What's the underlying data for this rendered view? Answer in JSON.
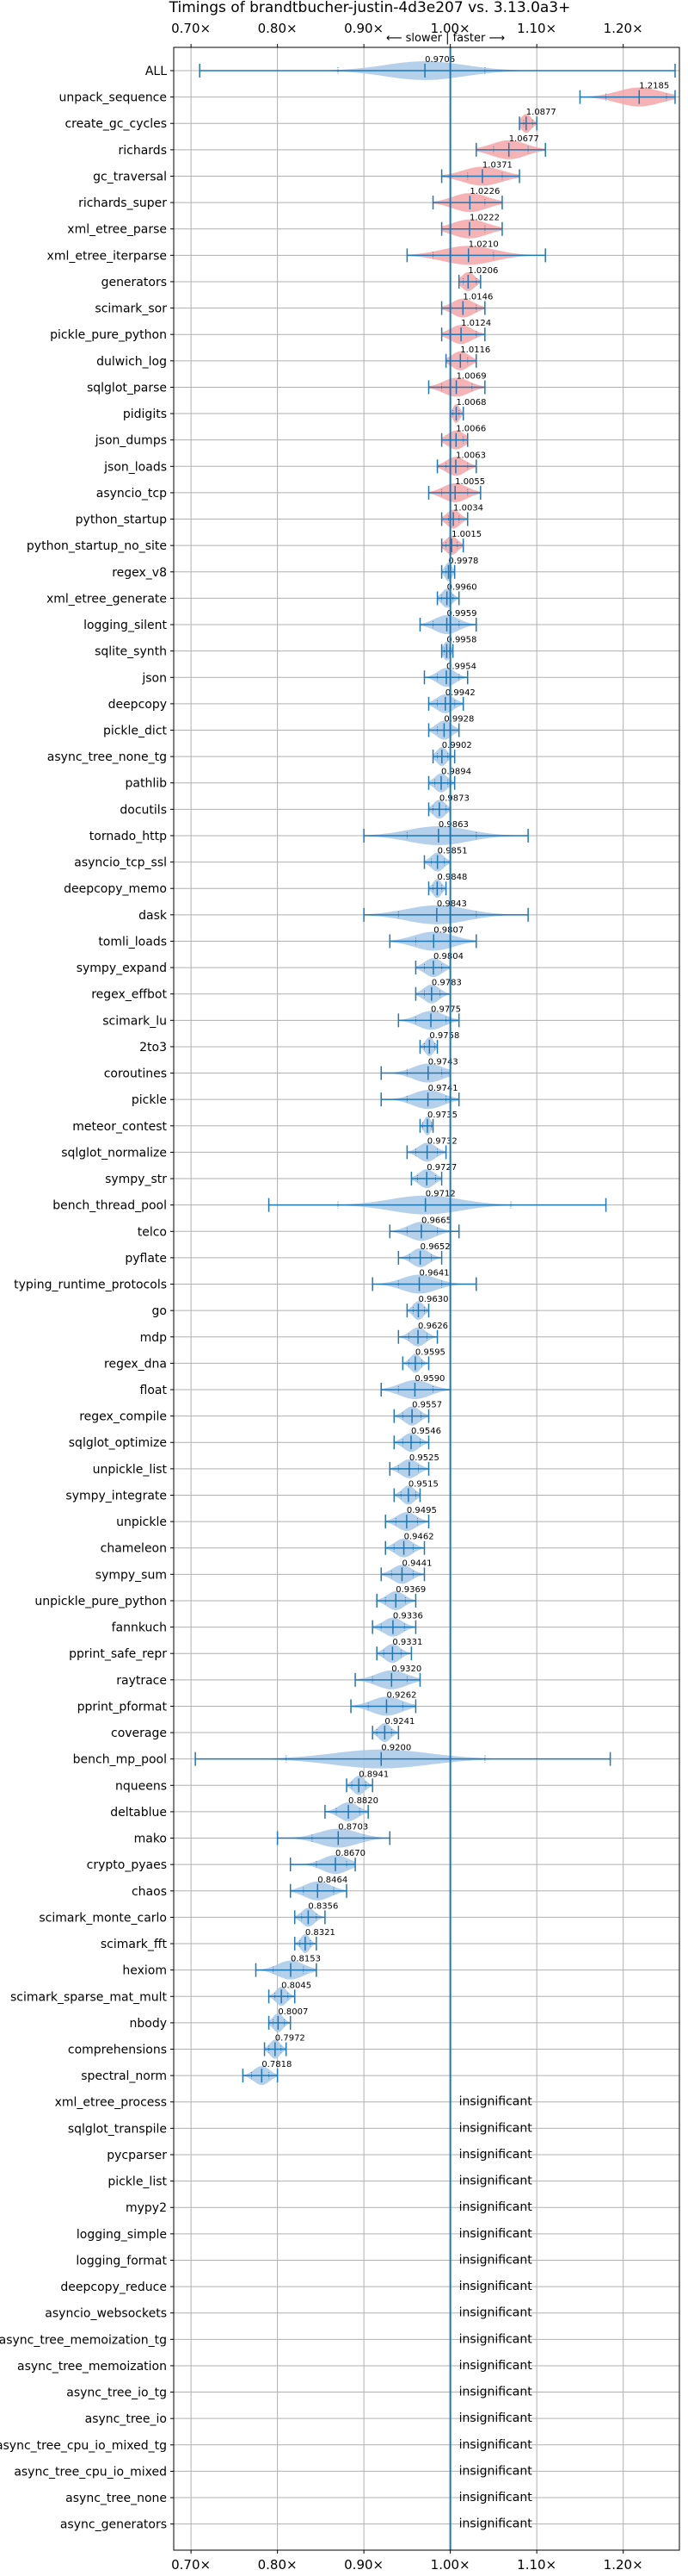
{
  "chart_data": {
    "type": "violin",
    "title": "Timings of brandtbucher-justin-4d3e207 vs. 3.13.0a3+",
    "subtitle": "⟵ slower | faster ⟶",
    "xlim": [
      0.68,
      1.265
    ],
    "xticks": [
      0.7,
      0.8,
      0.9,
      1.0,
      1.1,
      1.2
    ],
    "xtick_labels": [
      "0.70×",
      "0.80×",
      "0.90×",
      "1.00×",
      "1.10×",
      "1.20×"
    ],
    "reference_x": 1.0,
    "grid": true,
    "colors": {
      "faster": "#a8c8e8",
      "slower": "#f4a6a8",
      "line": "#1f77b4"
    },
    "insignificant_label": "insignificant",
    "benchmarks": [
      {
        "name": "ALL",
        "mean": 0.9706,
        "label": "0.9706",
        "min": 0.71,
        "max": 1.26,
        "q1": 0.87,
        "q3": 1.04,
        "width": 0.09
      },
      {
        "name": "unpack_sequence",
        "mean": 1.2185,
        "label": "1.2185",
        "min": 1.15,
        "max": 1.26,
        "q1": 1.18,
        "q3": 1.25,
        "width": 0.05
      },
      {
        "name": "create_gc_cycles",
        "mean": 1.0877,
        "label": "1.0877",
        "min": 1.08,
        "max": 1.1,
        "q1": 1.085,
        "q3": 1.095,
        "width": 0.012
      },
      {
        "name": "richards",
        "mean": 1.0677,
        "label": "1.0677",
        "min": 1.03,
        "max": 1.11,
        "q1": 1.05,
        "q3": 1.09,
        "width": 0.04
      },
      {
        "name": "gc_traversal",
        "mean": 1.0371,
        "label": "1.0371",
        "min": 0.99,
        "max": 1.08,
        "q1": 1.02,
        "q3": 1.06,
        "width": 0.045
      },
      {
        "name": "richards_super",
        "mean": 1.0226,
        "label": "1.0226",
        "min": 0.98,
        "max": 1.06,
        "q1": 1.0,
        "q3": 1.04,
        "width": 0.04
      },
      {
        "name": "xml_etree_parse",
        "mean": 1.0222,
        "label": "1.0222",
        "min": 0.99,
        "max": 1.06,
        "q1": 1.0,
        "q3": 1.04,
        "width": 0.04
      },
      {
        "name": "xml_etree_iterparse",
        "mean": 1.021,
        "label": "1.0210",
        "min": 0.95,
        "max": 1.11,
        "q1": 0.98,
        "q3": 1.05,
        "width": 0.06
      },
      {
        "name": "generators",
        "mean": 1.0206,
        "label": "1.0206",
        "min": 1.01,
        "max": 1.035,
        "q1": 1.015,
        "q3": 1.03,
        "width": 0.015
      },
      {
        "name": "scimark_sor",
        "mean": 1.0146,
        "label": "1.0146",
        "min": 0.99,
        "max": 1.04,
        "q1": 1.0,
        "q3": 1.03,
        "width": 0.025
      },
      {
        "name": "pickle_pure_python",
        "mean": 1.0124,
        "label": "1.0124",
        "min": 0.99,
        "max": 1.04,
        "q1": 1.0,
        "q3": 1.03,
        "width": 0.025
      },
      {
        "name": "dulwich_log",
        "mean": 1.0116,
        "label": "1.0116",
        "min": 0.995,
        "max": 1.03,
        "q1": 1.0,
        "q3": 1.02,
        "width": 0.02
      },
      {
        "name": "sqlglot_parse",
        "mean": 1.0069,
        "label": "1.0069",
        "min": 0.975,
        "max": 1.04,
        "q1": 0.99,
        "q3": 1.025,
        "width": 0.03
      },
      {
        "name": "pidigits",
        "mean": 1.0068,
        "label": "1.0068",
        "min": 1.0,
        "max": 1.015,
        "q1": 1.003,
        "q3": 1.01,
        "width": 0.008
      },
      {
        "name": "json_dumps",
        "mean": 1.0066,
        "label": "1.0066",
        "min": 0.99,
        "max": 1.02,
        "q1": 1.0,
        "q3": 1.015,
        "width": 0.02
      },
      {
        "name": "json_loads",
        "mean": 1.0063,
        "label": "1.0063",
        "min": 0.985,
        "max": 1.03,
        "q1": 0.995,
        "q3": 1.02,
        "width": 0.022
      },
      {
        "name": "asyncio_tcp",
        "mean": 1.0055,
        "label": "1.0055",
        "min": 0.975,
        "max": 1.035,
        "q1": 0.99,
        "q3": 1.02,
        "width": 0.028
      },
      {
        "name": "python_startup",
        "mean": 1.0034,
        "label": "1.0034",
        "min": 0.99,
        "max": 1.02,
        "q1": 0.998,
        "q3": 1.01,
        "width": 0.015
      },
      {
        "name": "python_startup_no_site",
        "mean": 1.0015,
        "label": "1.0015",
        "min": 0.99,
        "max": 1.015,
        "q1": 0.995,
        "q3": 1.008,
        "width": 0.014
      },
      {
        "name": "regex_v8",
        "mean": 0.9978,
        "label": "0.9978",
        "min": 0.99,
        "max": 1.005,
        "q1": 0.995,
        "q3": 1.0,
        "width": 0.008
      },
      {
        "name": "xml_etree_generate",
        "mean": 0.996,
        "label": "0.9960",
        "min": 0.985,
        "max": 1.01,
        "q1": 0.99,
        "q3": 1.003,
        "width": 0.012
      },
      {
        "name": "logging_silent",
        "mean": 0.9959,
        "label": "0.9959",
        "min": 0.965,
        "max": 1.03,
        "q1": 0.98,
        "q3": 1.01,
        "width": 0.028
      },
      {
        "name": "sqlite_synth",
        "mean": 0.9958,
        "label": "0.9958",
        "min": 0.99,
        "max": 1.003,
        "q1": 0.993,
        "q3": 0.999,
        "width": 0.008
      },
      {
        "name": "json",
        "mean": 0.9954,
        "label": "0.9954",
        "min": 0.97,
        "max": 1.02,
        "q1": 0.985,
        "q3": 1.01,
        "width": 0.02
      },
      {
        "name": "deepcopy",
        "mean": 0.9942,
        "label": "0.9942",
        "min": 0.975,
        "max": 1.015,
        "q1": 0.985,
        "q3": 1.005,
        "width": 0.02
      },
      {
        "name": "pickle_dict",
        "mean": 0.9928,
        "label": "0.9928",
        "min": 0.975,
        "max": 1.01,
        "q1": 0.985,
        "q3": 1.0,
        "width": 0.018
      },
      {
        "name": "async_tree_none_tg",
        "mean": 0.9902,
        "label": "0.9902",
        "min": 0.98,
        "max": 1.005,
        "q1": 0.985,
        "q3": 0.997,
        "width": 0.012
      },
      {
        "name": "pathlib",
        "mean": 0.9894,
        "label": "0.9894",
        "min": 0.975,
        "max": 1.005,
        "q1": 0.982,
        "q3": 0.997,
        "width": 0.015
      },
      {
        "name": "docutils",
        "mean": 0.9873,
        "label": "0.9873",
        "min": 0.975,
        "max": 1.0,
        "q1": 0.98,
        "q3": 0.995,
        "width": 0.014
      },
      {
        "name": "tornado_http",
        "mean": 0.9863,
        "label": "0.9863",
        "min": 0.9,
        "max": 1.09,
        "q1": 0.95,
        "q3": 1.03,
        "width": 0.07
      },
      {
        "name": "asyncio_tcp_ssl",
        "mean": 0.9851,
        "label": "0.9851",
        "min": 0.97,
        "max": 1.0,
        "q1": 0.978,
        "q3": 0.993,
        "width": 0.015
      },
      {
        "name": "deepcopy_memo",
        "mean": 0.9848,
        "label": "0.9848",
        "min": 0.975,
        "max": 0.995,
        "q1": 0.98,
        "q3": 0.99,
        "width": 0.01
      },
      {
        "name": "dask",
        "mean": 0.9843,
        "label": "0.9843",
        "min": 0.9,
        "max": 1.09,
        "q1": 0.94,
        "q3": 1.03,
        "width": 0.07
      },
      {
        "name": "tomli_loads",
        "mean": 0.9807,
        "label": "0.9807",
        "min": 0.93,
        "max": 1.03,
        "q1": 0.96,
        "q3": 1.0,
        "width": 0.045
      },
      {
        "name": "sympy_expand",
        "mean": 0.9804,
        "label": "0.9804",
        "min": 0.96,
        "max": 1.0,
        "q1": 0.97,
        "q3": 0.99,
        "width": 0.02
      },
      {
        "name": "regex_effbot",
        "mean": 0.9783,
        "label": "0.9783",
        "min": 0.96,
        "max": 1.0,
        "q1": 0.97,
        "q3": 0.988,
        "width": 0.018
      },
      {
        "name": "scimark_lu",
        "mean": 0.9775,
        "label": "0.9775",
        "min": 0.94,
        "max": 1.01,
        "q1": 0.96,
        "q3": 0.995,
        "width": 0.03
      },
      {
        "name": "2to3",
        "mean": 0.9758,
        "label": "0.9758",
        "min": 0.965,
        "max": 0.985,
        "q1": 0.97,
        "q3": 0.982,
        "width": 0.01
      },
      {
        "name": "coroutines",
        "mean": 0.9743,
        "label": "0.9743",
        "min": 0.92,
        "max": 1.0,
        "q1": 0.95,
        "q3": 0.99,
        "width": 0.035
      },
      {
        "name": "pickle",
        "mean": 0.9741,
        "label": "0.9741",
        "min": 0.92,
        "max": 1.01,
        "q1": 0.95,
        "q3": 0.995,
        "width": 0.035
      },
      {
        "name": "meteor_contest",
        "mean": 0.9735,
        "label": "0.9735",
        "min": 0.965,
        "max": 0.98,
        "q1": 0.968,
        "q3": 0.978,
        "width": 0.008
      },
      {
        "name": "sqlglot_normalize",
        "mean": 0.9732,
        "label": "0.9732",
        "min": 0.95,
        "max": 0.995,
        "q1": 0.96,
        "q3": 0.985,
        "width": 0.02
      },
      {
        "name": "sympy_str",
        "mean": 0.9727,
        "label": "0.9727",
        "min": 0.955,
        "max": 0.99,
        "q1": 0.962,
        "q3": 0.983,
        "width": 0.018
      },
      {
        "name": "bench_thread_pool",
        "mean": 0.9712,
        "label": "0.9712",
        "min": 0.79,
        "max": 1.18,
        "q1": 0.87,
        "q3": 1.07,
        "width": 0.08
      },
      {
        "name": "telco",
        "mean": 0.9665,
        "label": "0.9665",
        "min": 0.93,
        "max": 1.01,
        "q1": 0.95,
        "q3": 0.985,
        "width": 0.03
      },
      {
        "name": "pyflate",
        "mean": 0.9652,
        "label": "0.9652",
        "min": 0.94,
        "max": 0.99,
        "q1": 0.953,
        "q3": 0.978,
        "width": 0.02
      },
      {
        "name": "typing_runtime_protocols",
        "mean": 0.9641,
        "label": "0.9641",
        "min": 0.91,
        "max": 1.03,
        "q1": 0.94,
        "q3": 0.99,
        "width": 0.04
      },
      {
        "name": "go",
        "mean": 0.963,
        "label": "0.9630",
        "min": 0.95,
        "max": 0.975,
        "q1": 0.957,
        "q3": 0.97,
        "width": 0.012
      },
      {
        "name": "mdp",
        "mean": 0.9626,
        "label": "0.9626",
        "min": 0.94,
        "max": 0.985,
        "q1": 0.952,
        "q3": 0.973,
        "width": 0.018
      },
      {
        "name": "regex_dna",
        "mean": 0.9595,
        "label": "0.9595",
        "min": 0.945,
        "max": 0.975,
        "q1": 0.952,
        "q3": 0.967,
        "width": 0.012
      },
      {
        "name": "float",
        "mean": 0.959,
        "label": "0.9590",
        "min": 0.92,
        "max": 1.0,
        "q1": 0.94,
        "q3": 0.98,
        "width": 0.035
      },
      {
        "name": "regex_compile",
        "mean": 0.9557,
        "label": "0.9557",
        "min": 0.935,
        "max": 0.975,
        "q1": 0.945,
        "q3": 0.966,
        "width": 0.018
      },
      {
        "name": "sqlglot_optimize",
        "mean": 0.9546,
        "label": "0.9546",
        "min": 0.935,
        "max": 0.975,
        "q1": 0.945,
        "q3": 0.965,
        "width": 0.018
      },
      {
        "name": "unpickle_list",
        "mean": 0.9525,
        "label": "0.9525",
        "min": 0.93,
        "max": 0.975,
        "q1": 0.94,
        "q3": 0.963,
        "width": 0.02
      },
      {
        "name": "sympy_integrate",
        "mean": 0.9515,
        "label": "0.9515",
        "min": 0.935,
        "max": 0.965,
        "q1": 0.943,
        "q3": 0.96,
        "width": 0.015
      },
      {
        "name": "unpickle",
        "mean": 0.9495,
        "label": "0.9495",
        "min": 0.925,
        "max": 0.975,
        "q1": 0.937,
        "q3": 0.962,
        "width": 0.022
      },
      {
        "name": "chameleon",
        "mean": 0.9462,
        "label": "0.9462",
        "min": 0.925,
        "max": 0.97,
        "q1": 0.935,
        "q3": 0.957,
        "width": 0.02
      },
      {
        "name": "sympy_sum",
        "mean": 0.9441,
        "label": "0.9441",
        "min": 0.92,
        "max": 0.97,
        "q1": 0.932,
        "q3": 0.957,
        "width": 0.022
      },
      {
        "name": "unpickle_pure_python",
        "mean": 0.9369,
        "label": "0.9369",
        "min": 0.915,
        "max": 0.96,
        "q1": 0.925,
        "q3": 0.948,
        "width": 0.02
      },
      {
        "name": "fannkuch",
        "mean": 0.9336,
        "label": "0.9336",
        "min": 0.91,
        "max": 0.96,
        "q1": 0.92,
        "q3": 0.947,
        "width": 0.022
      },
      {
        "name": "pprint_safe_repr",
        "mean": 0.9331,
        "label": "0.9331",
        "min": 0.915,
        "max": 0.955,
        "q1": 0.923,
        "q3": 0.943,
        "width": 0.018
      },
      {
        "name": "raytrace",
        "mean": 0.932,
        "label": "0.9320",
        "min": 0.89,
        "max": 0.965,
        "q1": 0.91,
        "q3": 0.95,
        "width": 0.035
      },
      {
        "name": "pprint_pformat",
        "mean": 0.9262,
        "label": "0.9262",
        "min": 0.885,
        "max": 0.96,
        "q1": 0.905,
        "q3": 0.945,
        "width": 0.035
      },
      {
        "name": "coverage",
        "mean": 0.9241,
        "label": "0.9241",
        "min": 0.91,
        "max": 0.94,
        "q1": 0.915,
        "q3": 0.932,
        "width": 0.014
      },
      {
        "name": "bench_mp_pool",
        "mean": 0.92,
        "label": "0.9200",
        "min": 0.705,
        "max": 1.185,
        "q1": 0.81,
        "q3": 1.04,
        "width": 0.11
      },
      {
        "name": "nqueens",
        "mean": 0.8941,
        "label": "0.8941",
        "min": 0.88,
        "max": 0.91,
        "q1": 0.886,
        "q3": 0.902,
        "width": 0.014
      },
      {
        "name": "deltablue",
        "mean": 0.882,
        "label": "0.8820",
        "min": 0.855,
        "max": 0.905,
        "q1": 0.868,
        "q3": 0.895,
        "width": 0.022
      },
      {
        "name": "mako",
        "mean": 0.8703,
        "label": "0.8703",
        "min": 0.8,
        "max": 0.93,
        "q1": 0.84,
        "q3": 0.9,
        "width": 0.045
      },
      {
        "name": "crypto_pyaes",
        "mean": 0.867,
        "label": "0.8670",
        "min": 0.815,
        "max": 0.89,
        "q1": 0.845,
        "q3": 0.88,
        "width": 0.03
      },
      {
        "name": "chaos",
        "mean": 0.8464,
        "label": "0.8464",
        "min": 0.815,
        "max": 0.88,
        "q1": 0.83,
        "q3": 0.865,
        "width": 0.03
      },
      {
        "name": "scimark_monte_carlo",
        "mean": 0.8356,
        "label": "0.8356",
        "min": 0.82,
        "max": 0.855,
        "q1": 0.828,
        "q3": 0.845,
        "width": 0.015
      },
      {
        "name": "scimark_fft",
        "mean": 0.8321,
        "label": "0.8321",
        "min": 0.82,
        "max": 0.845,
        "q1": 0.826,
        "q3": 0.838,
        "width": 0.01
      },
      {
        "name": "hexiom",
        "mean": 0.8153,
        "label": "0.8153",
        "min": 0.775,
        "max": 0.845,
        "q1": 0.795,
        "q3": 0.83,
        "width": 0.03
      },
      {
        "name": "scimark_sparse_mat_mult",
        "mean": 0.8045,
        "label": "0.8045",
        "min": 0.79,
        "max": 0.82,
        "q1": 0.797,
        "q3": 0.812,
        "width": 0.013
      },
      {
        "name": "nbody",
        "mean": 0.8007,
        "label": "0.8007",
        "min": 0.79,
        "max": 0.815,
        "q1": 0.795,
        "q3": 0.808,
        "width": 0.012
      },
      {
        "name": "comprehensions",
        "mean": 0.7972,
        "label": "0.7972",
        "min": 0.785,
        "max": 0.81,
        "q1": 0.79,
        "q3": 0.804,
        "width": 0.012
      },
      {
        "name": "spectral_norm",
        "mean": 0.7818,
        "label": "0.7818",
        "min": 0.76,
        "max": 0.8,
        "q1": 0.77,
        "q3": 0.79,
        "width": 0.018
      },
      {
        "name": "xml_etree_process",
        "mean": null,
        "label": null
      },
      {
        "name": "sqlglot_transpile",
        "mean": null,
        "label": null
      },
      {
        "name": "pycparser",
        "mean": null,
        "label": null
      },
      {
        "name": "pickle_list",
        "mean": null,
        "label": null
      },
      {
        "name": "mypy2",
        "mean": null,
        "label": null
      },
      {
        "name": "logging_simple",
        "mean": null,
        "label": null
      },
      {
        "name": "logging_format",
        "mean": null,
        "label": null
      },
      {
        "name": "deepcopy_reduce",
        "mean": null,
        "label": null
      },
      {
        "name": "asyncio_websockets",
        "mean": null,
        "label": null
      },
      {
        "name": "async_tree_memoization_tg",
        "mean": null,
        "label": null
      },
      {
        "name": "async_tree_memoization",
        "mean": null,
        "label": null
      },
      {
        "name": "async_tree_io_tg",
        "mean": null,
        "label": null
      },
      {
        "name": "async_tree_io",
        "mean": null,
        "label": null
      },
      {
        "name": "async_tree_cpu_io_mixed_tg",
        "mean": null,
        "label": null
      },
      {
        "name": "async_tree_cpu_io_mixed",
        "mean": null,
        "label": null
      },
      {
        "name": "async_tree_none",
        "mean": null,
        "label": null
      },
      {
        "name": "async_generators",
        "mean": null,
        "label": null
      }
    ]
  }
}
